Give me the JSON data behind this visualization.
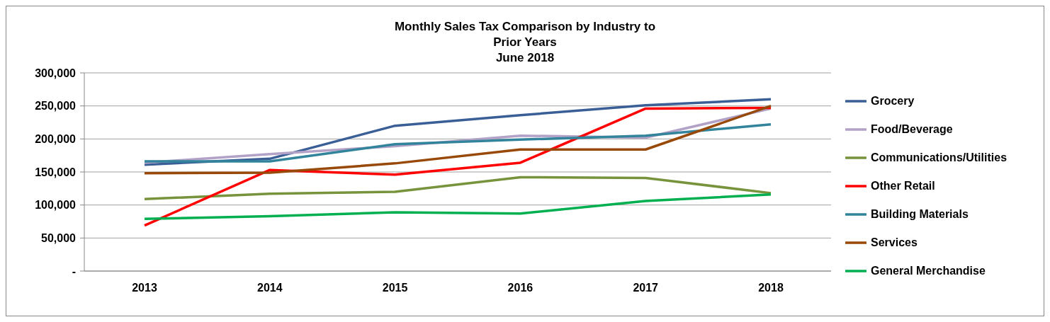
{
  "chart_data": {
    "type": "line",
    "title": "Monthly Sales Tax Comparison by Industry to Prior Years",
    "subtitle": "June 2018",
    "categories": [
      "2013",
      "2014",
      "2015",
      "2016",
      "2017",
      "2018"
    ],
    "series": [
      {
        "name": "Grocery",
        "color": "#3a5f97",
        "values": [
          161000,
          170000,
          220000,
          236000,
          251000,
          260000
        ]
      },
      {
        "name": "Food/Beverage",
        "color": "#b3a2c7",
        "values": [
          164000,
          177000,
          189000,
          205000,
          202000,
          246000
        ]
      },
      {
        "name": "Communications/Utilities",
        "color": "#77933c",
        "values": [
          109000,
          117000,
          120000,
          142000,
          141000,
          118000
        ]
      },
      {
        "name": "Other Retail",
        "color": "#ff0000",
        "values": [
          69000,
          153000,
          146000,
          164000,
          246000,
          247000
        ]
      },
      {
        "name": "Building Materials",
        "color": "#31849b",
        "values": [
          166000,
          166000,
          192000,
          199000,
          205000,
          222000
        ]
      },
      {
        "name": "Services",
        "color": "#984807",
        "values": [
          148000,
          149000,
          163000,
          184000,
          184000,
          250000
        ]
      },
      {
        "name": "General Merchandise",
        "color": "#00b050",
        "values": [
          79000,
          83000,
          89000,
          87000,
          106000,
          116000
        ]
      }
    ],
    "ylim": [
      0,
      300000
    ],
    "yticks": [
      {
        "value": 0,
        "label": "-"
      },
      {
        "value": 50000,
        "label": "50,000"
      },
      {
        "value": 100000,
        "label": "100,000"
      },
      {
        "value": 150000,
        "label": "150,000"
      },
      {
        "value": 200000,
        "label": "200,000"
      },
      {
        "value": 250000,
        "label": "250,000"
      },
      {
        "value": 300000,
        "label": "300,000"
      }
    ],
    "grid": "y",
    "legend": "right",
    "marker": "none",
    "line_style": "solid"
  }
}
